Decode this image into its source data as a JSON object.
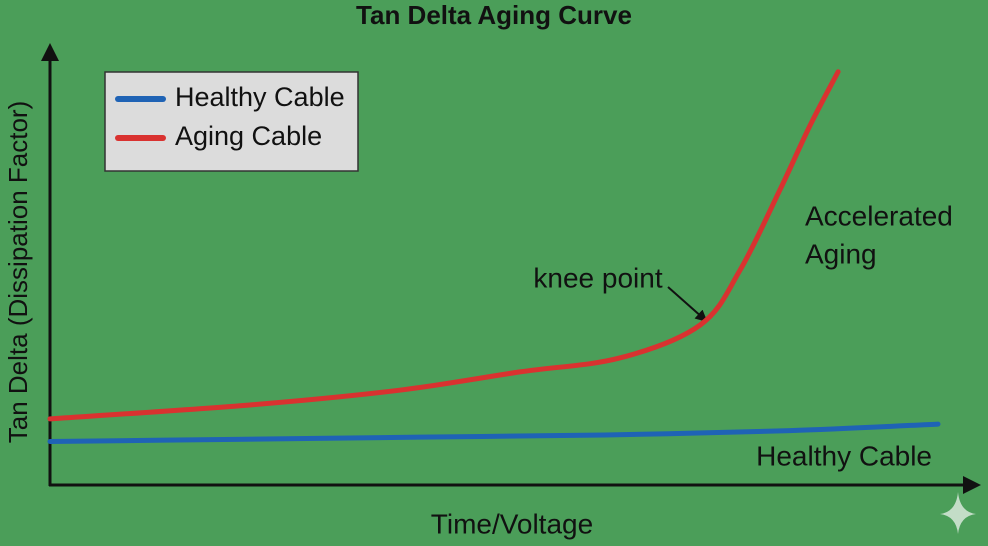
{
  "chart_data": {
    "type": "line",
    "title": "Tan Delta Aging Curve",
    "x_label": "Time/Voltage",
    "y_label": "Tan Delta (Dissipation Factor)",
    "xlim": [
      0,
      100
    ],
    "ylim": [
      0,
      100
    ],
    "legend": "top-left",
    "series": [
      {
        "name": "Healthy Cable",
        "color": "#1f63b5",
        "x": [
          0,
          20,
          40,
          60,
          80,
          96
        ],
        "values": [
          10,
          10.5,
          11,
          11.5,
          12.5,
          14
        ]
      },
      {
        "name": "Aging Cable",
        "color": "#d93230",
        "x": [
          0,
          21.6,
          37.8,
          50.8,
          61.6,
          70.3,
          74.6,
          78.9,
          82.2,
          85.2
        ],
        "values": [
          15.2,
          18.4,
          21.8,
          26,
          29.2,
          36.8,
          49.4,
          67.8,
          82.8,
          95
        ]
      }
    ],
    "annotations": [
      "knee point",
      "Accelerated",
      "Aging",
      "Healthy Cable"
    ]
  }
}
